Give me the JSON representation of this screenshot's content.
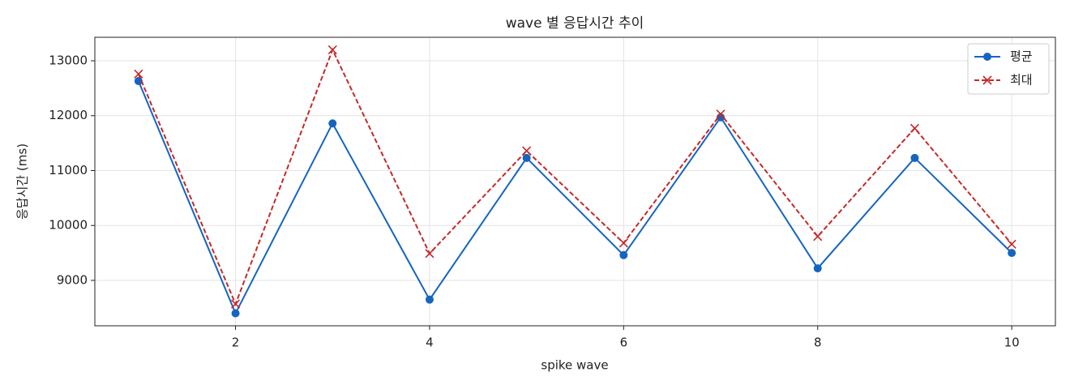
{
  "chart_data": {
    "type": "line",
    "title": "wave 별 응답시간 추이",
    "x_label": "spike wave",
    "y_label": "응답시간 (ms)",
    "x": [
      1,
      2,
      3,
      4,
      5,
      6,
      7,
      8,
      9,
      10
    ],
    "series": [
      {
        "name": "평균",
        "color": "#1565c0",
        "linestyle": "solid",
        "marker": "circle",
        "values": [
          12630,
          8400,
          11860,
          8650,
          11230,
          9460,
          11970,
          9220,
          11230,
          9500
        ]
      },
      {
        "name": "최대",
        "color": "#c62828",
        "linestyle": "dashed",
        "marker": "x",
        "values": [
          12760,
          8570,
          13200,
          9490,
          11360,
          9680,
          12030,
          9800,
          11770,
          9660
        ]
      }
    ],
    "xlim": [
      0.55,
      10.45
    ],
    "xticks": [
      2,
      4,
      6,
      8,
      10
    ],
    "ylim": [
      8173,
      13428
    ],
    "yticks": [
      9000,
      10000,
      11000,
      12000,
      13000
    ],
    "grid": true,
    "legend": "upper right"
  }
}
